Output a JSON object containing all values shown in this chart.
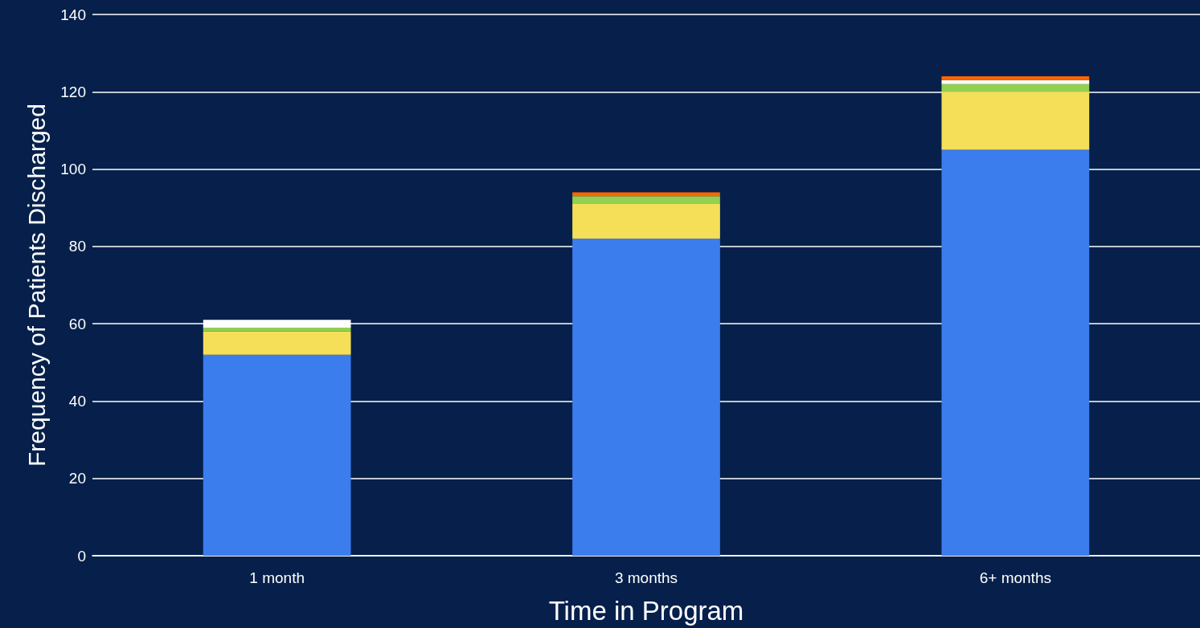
{
  "chart_data": {
    "type": "bar",
    "stacked": true,
    "xlabel": "Time in Program",
    "ylabel": "Frequency of Patients Discharged",
    "categories": [
      "1 month",
      "3 months",
      "6+ months"
    ],
    "series": [
      {
        "color": "#3b7ded",
        "values": [
          52,
          82,
          105
        ]
      },
      {
        "color": "#f5df58",
        "values": [
          6,
          9,
          15
        ]
      },
      {
        "color": "#92d050",
        "values": [
          1,
          2,
          2
        ]
      },
      {
        "color": "#ffffff",
        "values": [
          2,
          0,
          1
        ]
      },
      {
        "color": "#ff6600",
        "values": [
          0,
          1,
          1
        ]
      }
    ],
    "ylim": [
      0,
      140
    ],
    "yticks": [
      0,
      20,
      40,
      60,
      80,
      100,
      120,
      140
    ],
    "grid": "y"
  }
}
